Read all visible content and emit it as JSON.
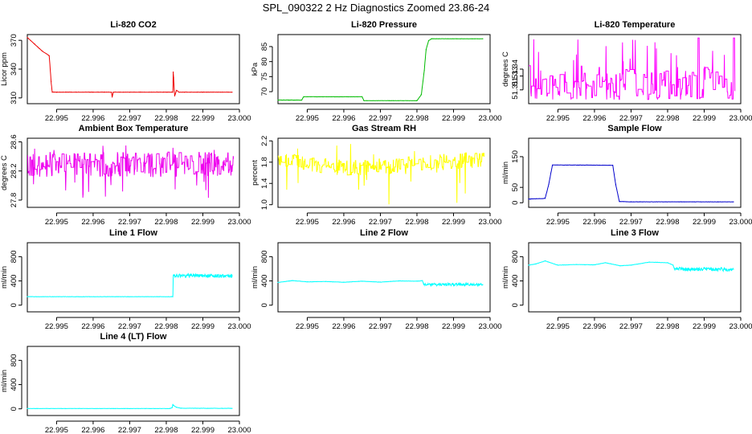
{
  "figure_title": "SPL_090322  2 Hz Diagnostics Zoomed 23.86-24",
  "chart_data": [
    {
      "id": "co2",
      "type": "line",
      "title": "Li-820 CO2",
      "ylabel": "Licor ppm",
      "color": "#ee0000",
      "xlim": [
        22.9942,
        23.0
      ],
      "ylim": [
        304,
        376
      ],
      "xticks": [
        22.995,
        22.996,
        22.997,
        22.998,
        22.999,
        23.0
      ],
      "xtick_labels": [
        "22.995",
        "22.996",
        "22.997",
        "22.998",
        "22.999",
        "23.000"
      ],
      "yticks": [
        310,
        340,
        370
      ],
      "ytick_labels": [
        "310",
        "340",
        "370"
      ],
      "series": [
        {
          "name": "Licor CO2",
          "mode": "line",
          "x": [
            22.9942,
            22.9944,
            22.9946,
            22.9948,
            22.99485,
            22.99488,
            22.995,
            22.996,
            22.9965,
            22.99652,
            22.99655,
            22.997,
            22.998,
            22.99818,
            22.99819,
            22.9982,
            22.99823,
            22.99828,
            22.99835,
            22.9985,
            22.999,
            22.9998
          ],
          "y": [
            373,
            366,
            359,
            354,
            327,
            316,
            316,
            316,
            316,
            311,
            316,
            316,
            316,
            316,
            337,
            331,
            312,
            318,
            316,
            316,
            316,
            316
          ]
        }
      ]
    },
    {
      "id": "pressure",
      "type": "line",
      "title": "Li-820 Pressure",
      "ylabel": "kPa",
      "color": "#00bb00",
      "xlim": [
        22.9942,
        23.0
      ],
      "ylim": [
        66,
        89
      ],
      "xticks": [
        22.995,
        22.996,
        22.997,
        22.998,
        22.999,
        23.0
      ],
      "xtick_labels": [
        "22.995",
        "22.996",
        "22.997",
        "22.998",
        "22.999",
        "23.000"
      ],
      "yticks": [
        70,
        75,
        80,
        85
      ],
      "ytick_labels": [
        "70",
        "75",
        "80",
        "85"
      ],
      "series": [
        {
          "name": "Pressure",
          "mode": "line",
          "x": [
            22.9942,
            22.99485,
            22.9949,
            22.9965,
            22.99655,
            22.998,
            22.99812,
            22.9982,
            22.99825,
            22.99832,
            22.9984,
            22.9998
          ],
          "y": [
            67.2,
            67.2,
            68.3,
            68.3,
            67.0,
            67.0,
            69,
            77,
            84,
            87,
            87.6,
            87.6
          ]
        }
      ]
    },
    {
      "id": "licor_temp",
      "type": "line",
      "title": "Li-820 Temperature",
      "ylabel": "degrees C",
      "color": "#ff00ff",
      "xlim": [
        22.9942,
        23.0
      ],
      "ylim": [
        51.29,
        51.39
      ],
      "xticks": [
        22.995,
        22.996,
        22.997,
        22.998,
        22.999,
        23.0
      ],
      "xtick_labels": [
        "22.995",
        "22.996",
        "22.997",
        "22.998",
        "22.999",
        "23.000"
      ],
      "yticks": [
        51.31,
        51.33,
        51.34
      ],
      "ytick_labels": [
        "51.31",
        "51.33",
        "51.34"
      ],
      "series": [
        {
          "name": "Temperature",
          "mode": "band",
          "low": 51.296,
          "high": 51.345,
          "mid": 51.345,
          "spike_low": 51.296,
          "spike_high": 51.385,
          "density": 0.28,
          "spikes_x": [
            22.99885,
            22.99982
          ]
        }
      ]
    },
    {
      "id": "box_temp",
      "type": "line",
      "title": "Ambient Box Temperature",
      "ylabel": "degrees C",
      "color": "#ee00ee",
      "xlim": [
        22.9942,
        23.0
      ],
      "ylim": [
        27.7,
        28.65
      ],
      "xticks": [
        22.995,
        22.996,
        22.997,
        22.998,
        22.999,
        23.0
      ],
      "xtick_labels": [
        "22.995",
        "22.996",
        "22.997",
        "22.998",
        "22.999",
        "23.000"
      ],
      "yticks": [
        27.8,
        28.2,
        28.6
      ],
      "ytick_labels": [
        "27.8",
        "28.2",
        "28.6"
      ],
      "series": [
        {
          "name": "Box temperature",
          "mode": "band",
          "low": 28.12,
          "high": 28.46,
          "mid": 28.33,
          "spike_low": 27.8,
          "spike_high": 28.58,
          "density": 0.5
        }
      ]
    },
    {
      "id": "rh",
      "type": "line",
      "title": "Gas Stream RH",
      "ylabel": "percent",
      "color": "#ffff00",
      "xlim": [
        22.9942,
        23.0
      ],
      "ylim": [
        0.95,
        2.25
      ],
      "xticks": [
        22.995,
        22.996,
        22.997,
        22.998,
        22.999,
        23.0
      ],
      "xtick_labels": [
        "22.995",
        "22.996",
        "22.997",
        "22.998",
        "22.999",
        "23.000"
      ],
      "yticks": [
        1.0,
        1.4,
        1.8,
        2.2
      ],
      "ytick_labels": [
        "1.0",
        "1.4",
        "1.8",
        "2.2"
      ],
      "series": [
        {
          "name": "Relative humidity",
          "mode": "band",
          "low": 1.62,
          "high": 1.92,
          "mid": 1.75,
          "spike_low": 1.0,
          "spike_high": 2.15,
          "density": 0.45,
          "trend": [
            [
              22.9942,
              0.1
            ],
            [
              22.995,
              0.0
            ],
            [
              22.996,
              -0.08
            ],
            [
              22.997,
              -0.05
            ],
            [
              22.998,
              0.0
            ],
            [
              22.999,
              0.05
            ],
            [
              22.9998,
              0.08
            ]
          ]
        }
      ]
    },
    {
      "id": "sample_flow",
      "type": "line",
      "title": "Sample Flow",
      "ylabel": "ml/min",
      "color": "#0000cc",
      "xlim": [
        22.9942,
        23.0
      ],
      "ylim": [
        -15,
        210
      ],
      "xticks": [
        22.995,
        22.996,
        22.997,
        22.998,
        22.999,
        23.0
      ],
      "xtick_labels": [
        "22.995",
        "22.996",
        "22.997",
        "22.998",
        "22.999",
        "23.000"
      ],
      "yticks": [
        0,
        50,
        150
      ],
      "ytick_labels": [
        "0",
        "50",
        "150"
      ],
      "series": [
        {
          "name": "Sample flow",
          "mode": "line",
          "x": [
            22.9942,
            22.99465,
            22.99475,
            22.99485,
            22.9965,
            22.99658,
            22.99668,
            22.997,
            22.9998
          ],
          "y": [
            12,
            14,
            60,
            123,
            122,
            60,
            4,
            3,
            3
          ]
        }
      ]
    },
    {
      "id": "line1_flow",
      "type": "line",
      "title": "Line 1 Flow",
      "ylabel": "ml/min",
      "color": "#00ffff",
      "xlim": [
        22.9942,
        23.0
      ],
      "ylim": [
        -110,
        1030
      ],
      "xticks": [
        22.995,
        22.996,
        22.997,
        22.998,
        22.999,
        23.0
      ],
      "xtick_labels": [
        "22.995",
        "22.996",
        "22.997",
        "22.998",
        "22.999",
        "23.000"
      ],
      "yticks": [
        0,
        400,
        800
      ],
      "ytick_labels": [
        "0",
        "400",
        "800"
      ],
      "series": [
        {
          "name": "Line 1 flow",
          "mode": "line",
          "x": [
            22.9942,
            22.99818,
            22.99819,
            22.9998
          ],
          "y": [
            140,
            140,
            490,
            480
          ],
          "noise_after": 22.99819,
          "noise_amp": 28
        }
      ]
    },
    {
      "id": "line2_flow",
      "type": "line",
      "title": "Line 2 Flow",
      "ylabel": "ml/min",
      "color": "#00ffff",
      "xlim": [
        22.9942,
        23.0
      ],
      "ylim": [
        -110,
        1030
      ],
      "xticks": [
        22.995,
        22.996,
        22.997,
        22.998,
        22.999,
        23.0
      ],
      "xtick_labels": [
        "22.995",
        "22.996",
        "22.997",
        "22.998",
        "22.999",
        "23.000"
      ],
      "yticks": [
        0,
        400,
        800
      ],
      "ytick_labels": [
        "0",
        "400",
        "800"
      ],
      "series": [
        {
          "name": "Line 2 flow",
          "mode": "line",
          "x": [
            22.9942,
            22.9946,
            22.995,
            22.9955,
            22.996,
            22.9965,
            22.997,
            22.9975,
            22.998,
            22.99815,
            22.99818,
            22.9985,
            22.9998
          ],
          "y": [
            375,
            405,
            385,
            390,
            378,
            395,
            380,
            400,
            395,
            405,
            345,
            340,
            340
          ],
          "noise_after": 22.99818,
          "noise_amp": 22
        }
      ]
    },
    {
      "id": "line3_flow",
      "type": "line",
      "title": "Line 3 Flow",
      "ylabel": "ml/min",
      "color": "#00ffff",
      "xlim": [
        22.9942,
        23.0
      ],
      "ylim": [
        -110,
        1030
      ],
      "xticks": [
        22.995,
        22.996,
        22.997,
        22.998,
        22.999,
        23.0
      ],
      "xtick_labels": [
        "22.995",
        "22.996",
        "22.997",
        "22.998",
        "22.999",
        "23.000"
      ],
      "yticks": [
        0,
        400,
        800
      ],
      "ytick_labels": [
        "0",
        "400",
        "800"
      ],
      "series": [
        {
          "name": "Line 3 flow",
          "mode": "line",
          "x": [
            22.9942,
            22.9944,
            22.99465,
            22.995,
            22.9955,
            22.996,
            22.9963,
            22.9967,
            22.997,
            22.9975,
            22.998,
            22.99815,
            22.99818,
            22.9985,
            22.9998
          ],
          "y": [
            660,
            680,
            730,
            660,
            670,
            665,
            700,
            650,
            660,
            710,
            700,
            660,
            600,
            595,
            590
          ],
          "noise_after": 22.99818,
          "noise_amp": 30
        }
      ]
    },
    {
      "id": "line4_flow",
      "type": "line",
      "title": "Line 4 (LT) Flow",
      "ylabel": "ml/min",
      "color": "#00ffff",
      "xlim": [
        22.9942,
        23.0
      ],
      "ylim": [
        -110,
        1030
      ],
      "xticks": [
        22.995,
        22.996,
        22.997,
        22.998,
        22.999,
        23.0
      ],
      "xtick_labels": [
        "22.995",
        "22.996",
        "22.997",
        "22.998",
        "22.999",
        "23.000"
      ],
      "yticks": [
        0,
        400,
        800
      ],
      "ytick_labels": [
        "0",
        "400",
        "800"
      ],
      "series": [
        {
          "name": "Line 4 flow",
          "mode": "line",
          "x": [
            22.9942,
            22.9981,
            22.99816,
            22.99818,
            22.9982,
            22.99828,
            22.9984,
            22.9998
          ],
          "y": [
            5,
            5,
            20,
            70,
            55,
            25,
            10,
            8
          ]
        }
      ]
    }
  ]
}
